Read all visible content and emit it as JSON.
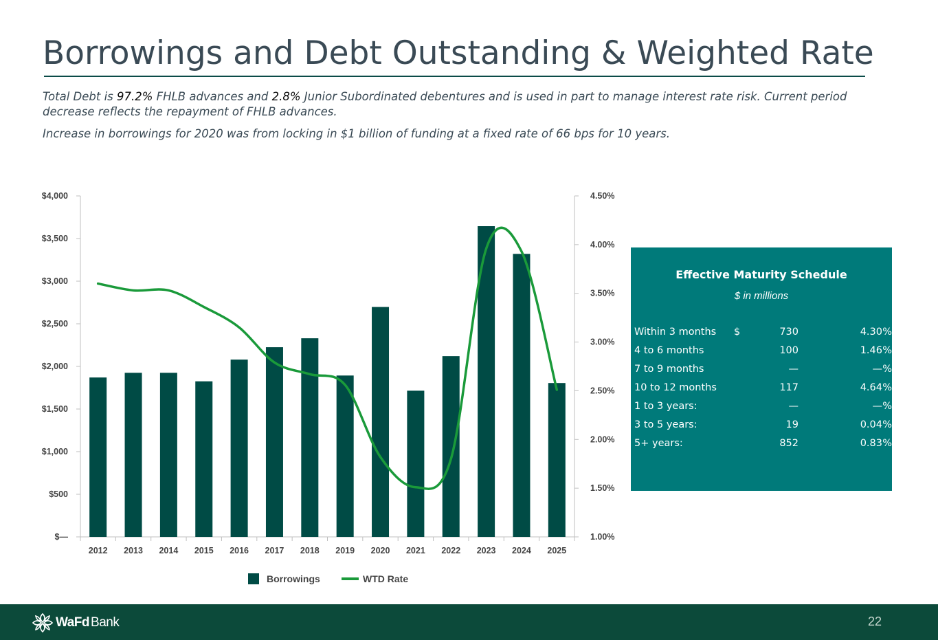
{
  "slide": {
    "title": "Borrowings and Debt Outstanding & Weighted Rate",
    "page_number": "22"
  },
  "subtitle": {
    "p1_a": "Total Debt is ",
    "p1_hl1": "97.2%",
    "p1_b": " FHLB advances and ",
    "p1_hl2": "2.8%",
    "p1_c": " Junior Subordinated debentures and is used in part to manage interest rate risk. Current period decrease reflects the repayment of FHLB advances.",
    "p2": "Increase in borrowings for 2020 was from locking in $1 billion of funding at a fixed rate of 66 bps for 10 years."
  },
  "chart_data": {
    "type": "bar",
    "categories": [
      "2012",
      "2013",
      "2014",
      "2015",
      "2016",
      "2017",
      "2018",
      "2019",
      "2020",
      "2021",
      "2022",
      "2023",
      "2024",
      "2025"
    ],
    "series": [
      {
        "name": "Borrowings",
        "type": "bar",
        "axis": "left",
        "color": "#004b45",
        "values": [
          1870,
          1925,
          1925,
          1825,
          2080,
          2225,
          2330,
          1893,
          2697,
          1715,
          2120,
          3645,
          3320,
          1805
        ]
      },
      {
        "name": "WTD Rate",
        "type": "line",
        "axis": "right",
        "color": "#1a9a3a",
        "values": [
          3.6,
          3.53,
          3.53,
          3.36,
          3.15,
          2.79,
          2.67,
          2.56,
          1.82,
          1.51,
          1.8,
          3.96,
          3.93,
          2.51
        ]
      }
    ],
    "y_left": {
      "ylim": [
        0,
        4000
      ],
      "ticks": [
        0,
        500,
        1000,
        1500,
        2000,
        2500,
        3000,
        3500,
        4000
      ],
      "tick_labels": [
        "$—",
        "$500",
        "$1,000",
        "$1,500",
        "$2,000",
        "$2,500",
        "$3,000",
        "$3,500",
        "$4,000"
      ]
    },
    "y_right": {
      "ylim": [
        1.0,
        4.5
      ],
      "ticks": [
        1.0,
        1.5,
        2.0,
        2.5,
        3.0,
        3.5,
        4.0,
        4.5
      ],
      "tick_labels": [
        "1.00%",
        "1.50%",
        "2.00%",
        "2.50%",
        "3.00%",
        "3.50%",
        "4.00%",
        "4.50%"
      ]
    },
    "legend": [
      "Borrowings",
      "WTD Rate"
    ],
    "legend_position": "bottom-center",
    "grid": false
  },
  "maturity": {
    "title": "Effective Maturity Schedule",
    "subtitle": "$ in millions",
    "rows": [
      {
        "label": "Within 3 months",
        "cur": "$",
        "amount": "730",
        "rate": "4.30",
        "pct": "%"
      },
      {
        "label": "4 to 6 months",
        "cur": "",
        "amount": "100",
        "rate": "1.46",
        "pct": "%"
      },
      {
        "label": "7 to 9 months",
        "cur": "",
        "amount": "—",
        "rate": "—",
        "pct": "%"
      },
      {
        "label": "10 to 12 months",
        "cur": "",
        "amount": "117",
        "rate": "4.64",
        "pct": "%"
      },
      {
        "label": "1 to 3 years:",
        "cur": "",
        "amount": "—",
        "rate": "—",
        "pct": "%"
      },
      {
        "label": "3 to 5 years:",
        "cur": "",
        "amount": "19",
        "rate": "0.04",
        "pct": "%"
      },
      {
        "label": "5+ years:",
        "cur": "",
        "amount": "852",
        "rate": "0.83",
        "pct": "%"
      }
    ]
  },
  "footer": {
    "logo_wafd": "WaFd",
    "logo_bank": "Bank",
    "logo_icon": "wafd-leaf-icon"
  }
}
